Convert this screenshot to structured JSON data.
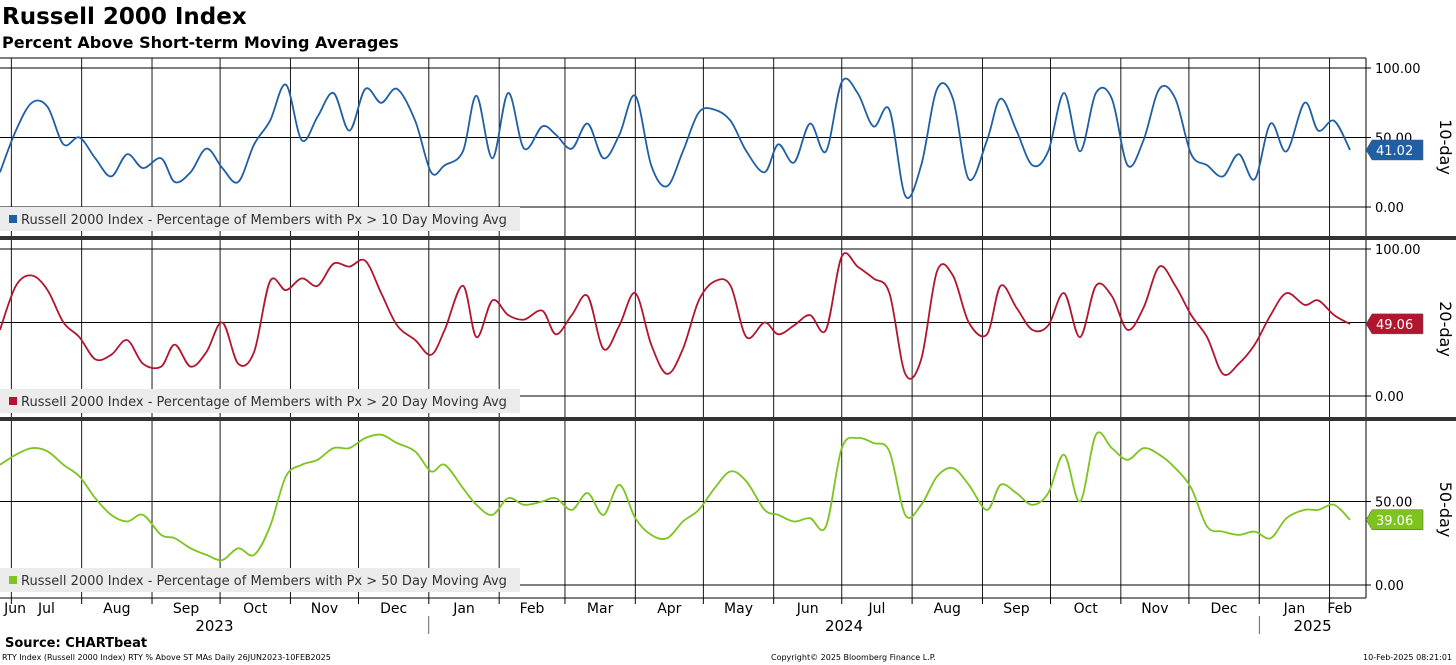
{
  "header": {
    "title": "Russell 2000 Index",
    "subtitle": "Percent Above Short-term Moving Averages"
  },
  "footer": {
    "source": "Source: CHARTbeat",
    "left": "RTY Index (Russell 2000 Index) RTY % Above ST MAs  Daily 26JUN2023-10FEB2025",
    "middle": "Copyright© 2025 Bloomberg Finance L.P.",
    "right": "10-Feb-2025 08:21:01"
  },
  "chart_data": [
    {
      "type": "line",
      "panel_label": "10-day",
      "color": "#1f5fa6",
      "ylim": [
        0,
        100
      ],
      "yticks": [
        "100.00",
        "50.00",
        "0.00"
      ],
      "last_value": "41.02",
      "series": [
        {
          "name": "Russell 2000 Index - Percentage of Members with Px > 10 Day Moving Avg",
          "x": [
            "2023-06-26",
            "2023-07-03",
            "2023-07-10",
            "2023-07-17",
            "2023-07-24",
            "2023-07-31",
            "2023-08-07",
            "2023-08-14",
            "2023-08-21",
            "2023-08-28",
            "2023-09-05",
            "2023-09-11",
            "2023-09-18",
            "2023-09-25",
            "2023-10-02",
            "2023-10-09",
            "2023-10-16",
            "2023-10-23",
            "2023-10-30",
            "2023-11-06",
            "2023-11-13",
            "2023-11-20",
            "2023-11-27",
            "2023-12-04",
            "2023-12-11",
            "2023-12-18",
            "2023-12-26",
            "2024-01-02",
            "2024-01-08",
            "2024-01-16",
            "2024-01-22",
            "2024-01-29",
            "2024-02-05",
            "2024-02-12",
            "2024-02-20",
            "2024-02-26",
            "2024-03-04",
            "2024-03-11",
            "2024-03-18",
            "2024-03-25",
            "2024-04-01",
            "2024-04-08",
            "2024-04-15",
            "2024-04-22",
            "2024-04-29",
            "2024-05-06",
            "2024-05-13",
            "2024-05-20",
            "2024-05-28",
            "2024-06-03",
            "2024-06-10",
            "2024-06-17",
            "2024-06-24",
            "2024-07-01",
            "2024-07-08",
            "2024-07-15",
            "2024-07-22",
            "2024-07-29",
            "2024-08-05",
            "2024-08-12",
            "2024-08-19",
            "2024-08-26",
            "2024-09-03",
            "2024-09-09",
            "2024-09-16",
            "2024-09-23",
            "2024-09-30",
            "2024-10-07",
            "2024-10-14",
            "2024-10-21",
            "2024-10-28",
            "2024-11-04",
            "2024-11-11",
            "2024-11-18",
            "2024-11-25",
            "2024-12-02",
            "2024-12-09",
            "2024-12-16",
            "2024-12-23",
            "2024-12-30",
            "2025-01-06",
            "2025-01-13",
            "2025-01-21",
            "2025-01-27",
            "2025-02-03",
            "2025-02-10"
          ],
          "values": [
            25,
            55,
            75,
            72,
            45,
            50,
            35,
            22,
            38,
            28,
            35,
            18,
            25,
            42,
            28,
            18,
            45,
            62,
            88,
            48,
            65,
            82,
            55,
            85,
            75,
            85,
            62,
            25,
            30,
            40,
            80,
            35,
            82,
            42,
            58,
            52,
            42,
            60,
            35,
            52,
            80,
            30,
            15,
            40,
            68,
            70,
            62,
            40,
            25,
            45,
            32,
            60,
            40,
            90,
            82,
            58,
            70,
            8,
            30,
            85,
            78,
            20,
            48,
            78,
            55,
            30,
            40,
            82,
            40,
            82,
            78,
            30,
            48,
            85,
            78,
            38,
            30,
            22,
            38,
            20,
            60,
            40,
            75,
            55,
            62,
            41
          ]
        }
      ]
    },
    {
      "type": "line",
      "panel_label": "20-day",
      "color": "#b2162e",
      "ylim": [
        0,
        100
      ],
      "yticks": [
        "100.00",
        "0.00"
      ],
      "last_value": "49.06",
      "series": [
        {
          "name": "Russell 2000 Index - Percentage of Members with Px > 20 Day Moving Avg",
          "x": [
            "2023-06-26",
            "2023-07-03",
            "2023-07-10",
            "2023-07-17",
            "2023-07-24",
            "2023-07-31",
            "2023-08-07",
            "2023-08-14",
            "2023-08-21",
            "2023-08-28",
            "2023-09-05",
            "2023-09-11",
            "2023-09-18",
            "2023-09-25",
            "2023-10-02",
            "2023-10-09",
            "2023-10-16",
            "2023-10-23",
            "2023-10-30",
            "2023-11-06",
            "2023-11-13",
            "2023-11-20",
            "2023-11-27",
            "2023-12-04",
            "2023-12-11",
            "2023-12-18",
            "2023-12-26",
            "2024-01-02",
            "2024-01-08",
            "2024-01-16",
            "2024-01-22",
            "2024-01-29",
            "2024-02-05",
            "2024-02-12",
            "2024-02-20",
            "2024-02-26",
            "2024-03-04",
            "2024-03-11",
            "2024-03-18",
            "2024-03-25",
            "2024-04-01",
            "2024-04-08",
            "2024-04-15",
            "2024-04-22",
            "2024-04-29",
            "2024-05-06",
            "2024-05-13",
            "2024-05-20",
            "2024-05-28",
            "2024-06-03",
            "2024-06-10",
            "2024-06-17",
            "2024-06-24",
            "2024-07-01",
            "2024-07-08",
            "2024-07-15",
            "2024-07-22",
            "2024-07-29",
            "2024-08-05",
            "2024-08-12",
            "2024-08-19",
            "2024-08-26",
            "2024-09-03",
            "2024-09-09",
            "2024-09-16",
            "2024-09-23",
            "2024-09-30",
            "2024-10-07",
            "2024-10-14",
            "2024-10-21",
            "2024-10-28",
            "2024-11-04",
            "2024-11-11",
            "2024-11-18",
            "2024-11-25",
            "2024-12-02",
            "2024-12-09",
            "2024-12-16",
            "2024-12-23",
            "2024-12-30",
            "2025-01-06",
            "2025-01-13",
            "2025-01-21",
            "2025-01-27",
            "2025-02-03",
            "2025-02-10"
          ],
          "values": [
            45,
            75,
            82,
            72,
            50,
            40,
            25,
            28,
            38,
            22,
            20,
            35,
            20,
            30,
            50,
            22,
            30,
            78,
            72,
            80,
            75,
            90,
            88,
            92,
            70,
            48,
            38,
            28,
            45,
            75,
            40,
            65,
            55,
            52,
            58,
            42,
            55,
            68,
            32,
            48,
            70,
            35,
            15,
            32,
            65,
            78,
            75,
            40,
            50,
            42,
            48,
            55,
            45,
            95,
            88,
            80,
            70,
            15,
            25,
            85,
            82,
            50,
            42,
            75,
            60,
            45,
            48,
            70,
            40,
            75,
            68,
            45,
            60,
            88,
            75,
            55,
            40,
            15,
            22,
            35,
            55,
            70,
            62,
            65,
            55,
            49
          ]
        }
      ]
    },
    {
      "type": "line",
      "panel_label": "50-day",
      "color": "#7dc41f",
      "ylim": [
        0,
        100
      ],
      "yticks": [
        "50.00",
        "0.00"
      ],
      "last_value": "39.06",
      "series": [
        {
          "name": "Russell 2000 Index - Percentage of Members with Px > 50 Day Moving Avg",
          "x": [
            "2023-06-26",
            "2023-07-03",
            "2023-07-10",
            "2023-07-17",
            "2023-07-24",
            "2023-07-31",
            "2023-08-07",
            "2023-08-14",
            "2023-08-21",
            "2023-08-28",
            "2023-09-05",
            "2023-09-11",
            "2023-09-18",
            "2023-09-25",
            "2023-10-02",
            "2023-10-09",
            "2023-10-16",
            "2023-10-23",
            "2023-10-30",
            "2023-11-06",
            "2023-11-13",
            "2023-11-20",
            "2023-11-27",
            "2023-12-04",
            "2023-12-11",
            "2023-12-18",
            "2023-12-26",
            "2024-01-02",
            "2024-01-08",
            "2024-01-16",
            "2024-01-22",
            "2024-01-29",
            "2024-02-05",
            "2024-02-12",
            "2024-02-20",
            "2024-02-26",
            "2024-03-04",
            "2024-03-11",
            "2024-03-18",
            "2024-03-25",
            "2024-04-01",
            "2024-04-08",
            "2024-04-15",
            "2024-04-22",
            "2024-04-29",
            "2024-05-06",
            "2024-05-13",
            "2024-05-20",
            "2024-05-28",
            "2024-06-03",
            "2024-06-10",
            "2024-06-17",
            "2024-06-24",
            "2024-07-01",
            "2024-07-08",
            "2024-07-15",
            "2024-07-22",
            "2024-07-29",
            "2024-08-05",
            "2024-08-12",
            "2024-08-19",
            "2024-08-26",
            "2024-09-03",
            "2024-09-09",
            "2024-09-16",
            "2024-09-23",
            "2024-09-30",
            "2024-10-07",
            "2024-10-14",
            "2024-10-21",
            "2024-10-28",
            "2024-11-04",
            "2024-11-11",
            "2024-11-18",
            "2024-11-25",
            "2024-12-02",
            "2024-12-09",
            "2024-12-16",
            "2024-12-23",
            "2024-12-30",
            "2025-01-06",
            "2025-01-13",
            "2025-01-21",
            "2025-01-27",
            "2025-02-03",
            "2025-02-10"
          ],
          "values": [
            72,
            78,
            82,
            80,
            72,
            65,
            52,
            42,
            38,
            42,
            30,
            28,
            22,
            18,
            15,
            22,
            18,
            35,
            65,
            72,
            75,
            82,
            82,
            88,
            90,
            85,
            80,
            68,
            72,
            58,
            48,
            42,
            52,
            48,
            50,
            52,
            45,
            55,
            42,
            60,
            40,
            30,
            28,
            38,
            45,
            58,
            68,
            62,
            45,
            42,
            38,
            40,
            35,
            82,
            88,
            85,
            80,
            42,
            48,
            65,
            70,
            60,
            45,
            60,
            55,
            48,
            55,
            78,
            50,
            90,
            82,
            75,
            82,
            78,
            70,
            58,
            35,
            32,
            30,
            32,
            28,
            40,
            45,
            45,
            48,
            39
          ]
        }
      ]
    }
  ],
  "x_axis": {
    "months": [
      "Jun",
      "Jul",
      "Aug",
      "Sep",
      "Oct",
      "Nov",
      "Dec",
      "Jan",
      "Feb",
      "Mar",
      "Apr",
      "May",
      "Jun",
      "Jul",
      "Aug",
      "Sep",
      "Oct",
      "Nov",
      "Dec",
      "Jan",
      "Feb"
    ],
    "years": [
      "2023",
      "2024",
      "2025"
    ]
  }
}
